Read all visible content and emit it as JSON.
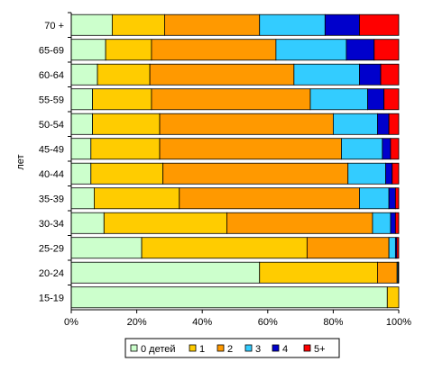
{
  "chart_data": {
    "type": "bar",
    "orientation": "horizontal",
    "stacked": "percent",
    "ylabel": "лет",
    "categories": [
      "70 +",
      "65-69",
      "60-64",
      "55-59",
      "50-54",
      "45-49",
      "40-44",
      "35-39",
      "30-34",
      "25-29",
      "20-24",
      "15-19"
    ],
    "series": [
      {
        "name": "0 детей",
        "color": "#CCFFCC",
        "values": [
          12.5,
          10.5,
          8,
          6.5,
          6.5,
          6,
          6,
          7,
          10,
          21.5,
          57.5,
          96.5
        ]
      },
      {
        "name": "1",
        "color": "#FFCC00",
        "values": [
          16,
          14,
          16,
          18,
          20.5,
          21,
          22,
          26,
          37.5,
          50.5,
          36,
          3.5
        ]
      },
      {
        "name": "2",
        "color": "#FF9900",
        "values": [
          29,
          38,
          44,
          48.5,
          53,
          55.5,
          56.5,
          55,
          44.5,
          25,
          6,
          0
        ]
      },
      {
        "name": "3",
        "color": "#33CCFF",
        "values": [
          20,
          21.5,
          20,
          17.5,
          13.5,
          12.5,
          11.5,
          9,
          5.5,
          2,
          0.3,
          0
        ]
      },
      {
        "name": "4",
        "color": "#0000CC",
        "values": [
          10.5,
          8.5,
          6.5,
          5,
          3.5,
          2.5,
          2,
          2,
          1.5,
          0.4,
          0.1,
          0
        ]
      },
      {
        "name": "5+",
        "color": "#FF0000",
        "values": [
          12,
          7.5,
          5.5,
          4.5,
          3,
          2.5,
          2,
          1,
          1,
          0.6,
          0.1,
          0
        ]
      }
    ],
    "xaxis": {
      "min": 0,
      "max": 100,
      "ticks": [
        "0%",
        "20%",
        "40%",
        "60%",
        "80%",
        "100%"
      ]
    },
    "grid": false,
    "legend": "bottom"
  }
}
